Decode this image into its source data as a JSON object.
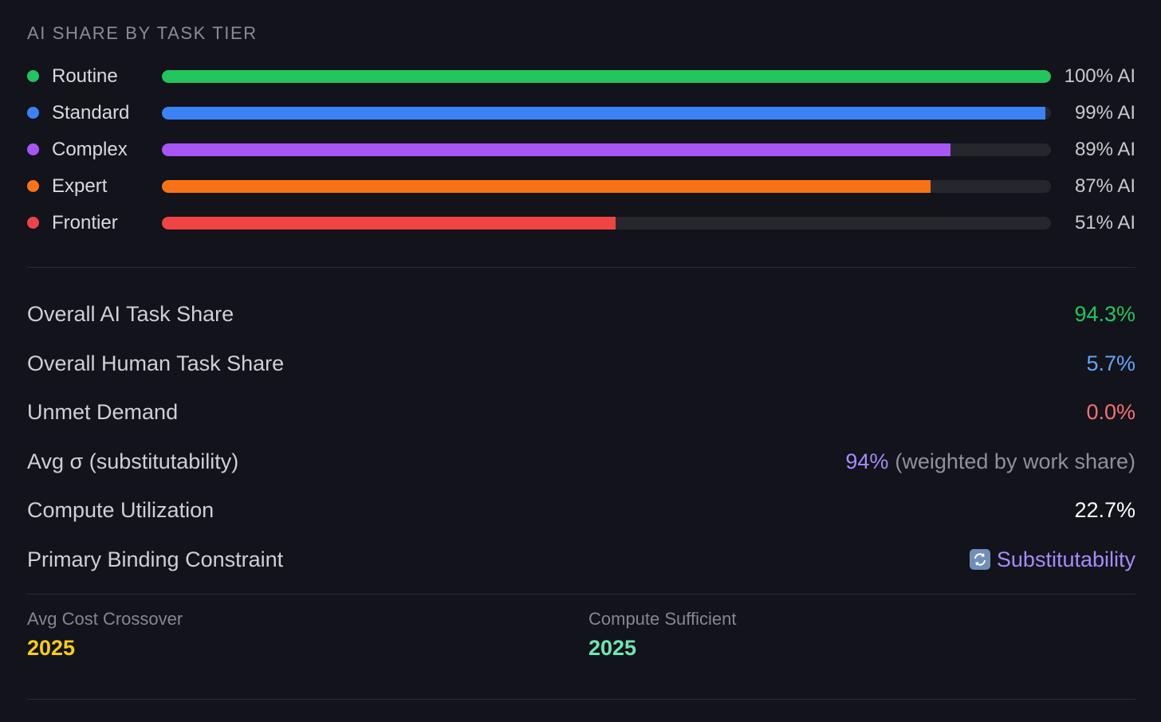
{
  "section_title": "AI SHARE BY TASK TIER",
  "tiers": [
    {
      "label": "Routine",
      "pct_text": "100% AI",
      "share": 1.0,
      "color": "#22c55e"
    },
    {
      "label": "Standard",
      "pct_text": "99% AI",
      "share": 0.994,
      "color": "#3b82f6"
    },
    {
      "label": "Complex",
      "pct_text": "89% AI",
      "share": 0.887,
      "color": "#a855f7"
    },
    {
      "label": "Expert",
      "pct_text": "87% AI",
      "share": 0.865,
      "color": "#f97316"
    },
    {
      "label": "Frontier",
      "pct_text": "51% AI",
      "share": 0.51,
      "color": "#ef4444"
    }
  ],
  "metrics": {
    "overall_ai": {
      "label": "Overall AI Task Share",
      "value": "94.3%",
      "color": "#22c55e"
    },
    "overall_human": {
      "label": "Overall Human Task Share",
      "value": "5.7%",
      "color": "#60a5fa"
    },
    "unmet": {
      "label": "Unmet Demand",
      "value": "0.0%",
      "color": "#f87171"
    },
    "avg_sigma": {
      "label": "Avg σ (substitutability)",
      "value": "94%",
      "note": "(weighted by work share)",
      "color": "#a78bfa"
    },
    "compute_util": {
      "label": "Compute Utilization",
      "value": "22.7%",
      "color": "#ffffff"
    },
    "binding": {
      "label": "Primary Binding Constraint",
      "value": "Substitutability",
      "icon": "refresh-icon",
      "color": "#a78bfa"
    }
  },
  "footer": {
    "cost_crossover": {
      "label": "Avg Cost Crossover",
      "value": "2025",
      "color": "#facc15"
    },
    "compute_sufficient": {
      "label": "Compute Sufficient",
      "value": "2025",
      "color": "#6ee7b7"
    }
  }
}
